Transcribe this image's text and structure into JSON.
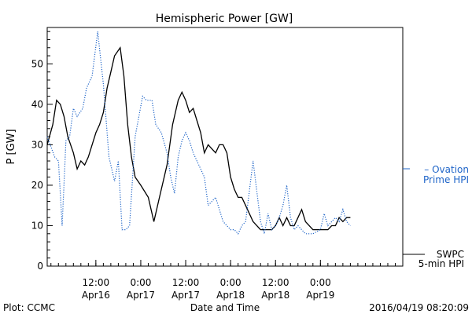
{
  "chart_data": {
    "type": "line",
    "title": "Hemispheric Power [GW]",
    "xlabel": "Date and Time",
    "ylabel": "P [GW]",
    "ylim": [
      0,
      59
    ],
    "yticks": [
      0,
      10,
      20,
      30,
      40,
      50
    ],
    "xlim": [
      "2016-04-15T23:00",
      "2016-04-19T22:00"
    ],
    "xticks": [
      {
        "time": "2016-04-16T12:00",
        "label": "12:00",
        "sublabel": "Apr16"
      },
      {
        "time": "2016-04-17T00:00",
        "label": "0:00",
        "sublabel": "Apr17"
      },
      {
        "time": "2016-04-17T12:00",
        "label": "12:00",
        "sublabel": "Apr17"
      },
      {
        "time": "2016-04-18T00:00",
        "label": "0:00",
        "sublabel": "Apr18"
      },
      {
        "time": "2016-04-18T12:00",
        "label": "12:00",
        "sublabel": "Apr18"
      },
      {
        "time": "2016-04-19T00:00",
        "label": "0:00",
        "sublabel": "Apr19"
      }
    ],
    "grid": false,
    "legend_position": "right",
    "series": [
      {
        "name_lines": [
          "SWPC",
          "5-min HPI"
        ],
        "color": "#000000",
        "style": "solid",
        "x": [
          "2016-04-15T23:00",
          "2016-04-16T00:30",
          "2016-04-16T01:30",
          "2016-04-16T02:30",
          "2016-04-16T03:30",
          "2016-04-16T04:30",
          "2016-04-16T06:00",
          "2016-04-16T07:00",
          "2016-04-16T08:00",
          "2016-04-16T09:00",
          "2016-04-16T10:00",
          "2016-04-16T11:00",
          "2016-04-16T12:00",
          "2016-04-16T13:00",
          "2016-04-16T14:00",
          "2016-04-16T15:00",
          "2016-04-16T16:00",
          "2016-04-16T17:00",
          "2016-04-16T18:30",
          "2016-04-16T19:30",
          "2016-04-16T20:30",
          "2016-04-16T21:30",
          "2016-04-16T22:30",
          "2016-04-17T00:00",
          "2016-04-17T02:00",
          "2016-04-17T03:30",
          "2016-04-17T05:00",
          "2016-04-17T07:00",
          "2016-04-17T08:30",
          "2016-04-17T10:00",
          "2016-04-17T11:00",
          "2016-04-17T12:00",
          "2016-04-17T13:00",
          "2016-04-17T14:00",
          "2016-04-17T15:00",
          "2016-04-17T16:00",
          "2016-04-17T17:00",
          "2016-04-17T18:00",
          "2016-04-17T19:00",
          "2016-04-17T20:00",
          "2016-04-17T21:00",
          "2016-04-17T22:00",
          "2016-04-17T23:00",
          "2016-04-18T00:00",
          "2016-04-18T01:00",
          "2016-04-18T02:00",
          "2016-04-18T03:00",
          "2016-04-18T04:00",
          "2016-04-18T06:00",
          "2016-04-18T08:00",
          "2016-04-18T10:00",
          "2016-04-18T11:00",
          "2016-04-18T12:00",
          "2016-04-18T13:00",
          "2016-04-18T14:00",
          "2016-04-18T15:00",
          "2016-04-18T16:00",
          "2016-04-18T17:00",
          "2016-04-18T18:00",
          "2016-04-18T19:00",
          "2016-04-18T20:00",
          "2016-04-18T22:00",
          "2016-04-19T00:00",
          "2016-04-19T02:00",
          "2016-04-19T03:00",
          "2016-04-19T04:00",
          "2016-04-19T05:00",
          "2016-04-19T06:00",
          "2016-04-19T07:00",
          "2016-04-19T08:00"
        ],
        "values": [
          30,
          35,
          41,
          40,
          37,
          32,
          28,
          24,
          26,
          25,
          27,
          30,
          33,
          35,
          38,
          44,
          48,
          52,
          54,
          47,
          35,
          27,
          22,
          20,
          17,
          11,
          17,
          25,
          35,
          41,
          43,
          41,
          38,
          39,
          36,
          33,
          28,
          30,
          29,
          28,
          30,
          30,
          28,
          22,
          19,
          17,
          17,
          15,
          11,
          9,
          9,
          9,
          10,
          12,
          10,
          12,
          10,
          10,
          12,
          14,
          11,
          9,
          9,
          9,
          10,
          10,
          12,
          11,
          12,
          12
        ]
      },
      {
        "name_lines": [
          "– Ovation",
          "Prime HPI"
        ],
        "color": "#1e64c8",
        "style": "dotted",
        "x": [
          "2016-04-15T23:00",
          "2016-04-16T01:00",
          "2016-04-16T02:00",
          "2016-04-16T03:00",
          "2016-04-16T04:00",
          "2016-04-16T05:00",
          "2016-04-16T06:00",
          "2016-04-16T07:00",
          "2016-04-16T08:30",
          "2016-04-16T09:30",
          "2016-04-16T11:00",
          "2016-04-16T12:30",
          "2016-04-16T14:00",
          "2016-04-16T15:30",
          "2016-04-16T17:00",
          "2016-04-16T18:00",
          "2016-04-16T19:00",
          "2016-04-16T20:00",
          "2016-04-16T21:00",
          "2016-04-16T22:30",
          "2016-04-17T00:30",
          "2016-04-17T01:30",
          "2016-04-17T03:00",
          "2016-04-17T04:00",
          "2016-04-17T05:30",
          "2016-04-17T07:00",
          "2016-04-17T08:00",
          "2016-04-17T09:00",
          "2016-04-17T10:00",
          "2016-04-17T11:00",
          "2016-04-17T12:00",
          "2016-04-17T13:00",
          "2016-04-17T14:00",
          "2016-04-17T15:00",
          "2016-04-17T16:00",
          "2016-04-17T17:00",
          "2016-04-17T18:00",
          "2016-04-17T19:00",
          "2016-04-17T20:00",
          "2016-04-17T21:00",
          "2016-04-17T22:00",
          "2016-04-17T23:00",
          "2016-04-18T00:00",
          "2016-04-18T01:00",
          "2016-04-18T02:00",
          "2016-04-18T03:00",
          "2016-04-18T04:00",
          "2016-04-18T06:00",
          "2016-04-18T08:00",
          "2016-04-18T09:00",
          "2016-04-18T10:00",
          "2016-04-18T11:00",
          "2016-04-18T12:00",
          "2016-04-18T13:00",
          "2016-04-18T14:00",
          "2016-04-18T15:00",
          "2016-04-18T16:00",
          "2016-04-18T17:00",
          "2016-04-18T18:00",
          "2016-04-18T19:00",
          "2016-04-18T20:00",
          "2016-04-18T22:00",
          "2016-04-19T00:00",
          "2016-04-19T01:00",
          "2016-04-19T02:00",
          "2016-04-19T03:00",
          "2016-04-19T04:00",
          "2016-04-19T05:00",
          "2016-04-19T06:00",
          "2016-04-19T07:00",
          "2016-04-19T08:00"
        ],
        "values": [
          32,
          27,
          26,
          10,
          31,
          32,
          39,
          37,
          39,
          44,
          47,
          58,
          45,
          27,
          21,
          26,
          9,
          9,
          10,
          32,
          42,
          41,
          41,
          35,
          33,
          28,
          22,
          18,
          27,
          31,
          33,
          31,
          28,
          26,
          24,
          22,
          15,
          16,
          17,
          14,
          11,
          10,
          9,
          9,
          8,
          10,
          11,
          26,
          11,
          8,
          13,
          9,
          10,
          12,
          15,
          20,
          12,
          9,
          10,
          9,
          8,
          8,
          9,
          13,
          10,
          11,
          12,
          11,
          14,
          11,
          10
        ]
      }
    ]
  },
  "footer": {
    "left": "Plot: CCMC",
    "center": "Date and Time",
    "right": "2016/04/19 08:20:09"
  }
}
